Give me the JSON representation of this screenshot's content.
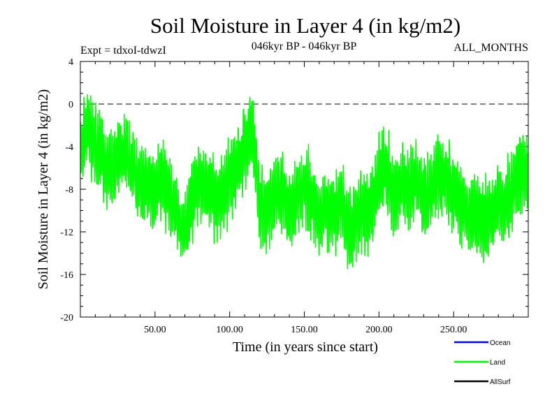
{
  "chart_data": {
    "type": "line",
    "title": "Soil Moisture in Layer 4 (in kg/m2)",
    "subtitle_left": "Expt = tdxoI-tdwzI",
    "subtitle_center": "046kyr BP - 046kyr BP",
    "subtitle_right": "ALL_MONTHS",
    "xlabel": "Time (in years since start)",
    "ylabel": "Soil Moisture in Layer 4 (in kg/m2)",
    "xlim": [
      0,
      300
    ],
    "ylim": [
      -20,
      4
    ],
    "x_ticks": [
      50,
      100,
      150,
      200,
      250
    ],
    "x_tick_labels": [
      "50.00",
      "100.00",
      "150.00",
      "200.00",
      "250.00"
    ],
    "y_ticks": [
      4,
      0,
      -4,
      -8,
      -12,
      -16,
      -20
    ],
    "y_tick_labels": [
      "4",
      "0",
      "-4",
      "-8",
      "-12",
      "-16",
      "-20"
    ],
    "reference_line": 0,
    "legend_placement": "bottom-right",
    "series": [
      {
        "name": "Ocean",
        "color": "#0000ff",
        "values": []
      },
      {
        "name": "Land",
        "color": "#00ff00",
        "x": [
          0,
          5,
          10,
          15,
          20,
          25,
          30,
          35,
          40,
          45,
          50,
          55,
          60,
          65,
          70,
          75,
          80,
          85,
          90,
          95,
          100,
          105,
          110,
          115,
          120,
          125,
          130,
          135,
          140,
          145,
          150,
          155,
          160,
          165,
          170,
          175,
          180,
          185,
          190,
          195,
          200,
          205,
          210,
          215,
          220,
          225,
          230,
          235,
          240,
          245,
          250,
          255,
          260,
          265,
          270,
          275,
          280,
          285,
          290,
          295,
          300
        ],
        "values": [
          -4.5,
          -2.5,
          -4,
          -5,
          -6.5,
          -5,
          -4.5,
          -6,
          -8,
          -7.5,
          -8,
          -6.5,
          -9,
          -10.5,
          -12,
          -9,
          -7,
          -8,
          -9,
          -8.5,
          -7,
          -6,
          -4,
          -2,
          -9.5,
          -10,
          -8.5,
          -8,
          -10,
          -9,
          -7.5,
          -9,
          -10.5,
          -9.5,
          -10,
          -9,
          -12.5,
          -11,
          -10,
          -9.5,
          -7,
          -6,
          -8.5,
          -7.5,
          -8,
          -7,
          -9,
          -8,
          -6.5,
          -7,
          -8,
          -9.5,
          -10.5,
          -10,
          -11,
          -10.5,
          -9,
          -9.5,
          -8,
          -6,
          -6.5
        ]
      },
      {
        "name": "AllSurf",
        "color": "#000000",
        "values": []
      }
    ]
  }
}
